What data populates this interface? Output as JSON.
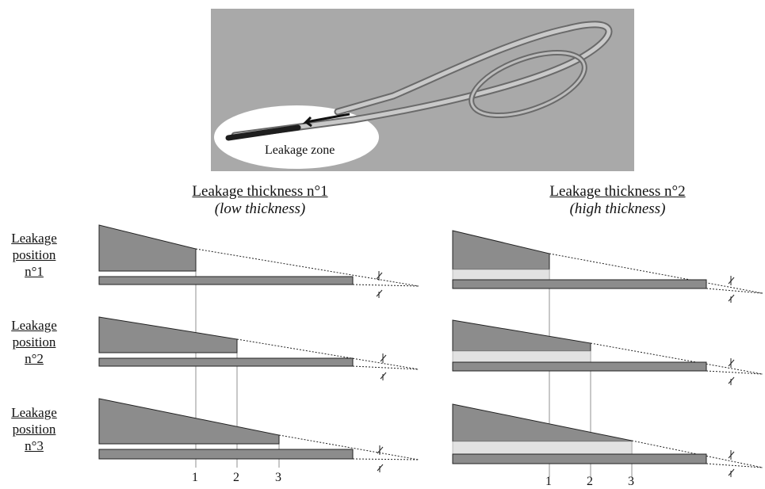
{
  "photo": {
    "zone_label": "Leakage zone"
  },
  "columns": [
    {
      "title": "Leakage thickness n°1",
      "subtitle": "(low thickness)"
    },
    {
      "title": "Leakage thickness n°2",
      "subtitle": "(high thickness)"
    }
  ],
  "rows": [
    {
      "lines": [
        "Leakage",
        "position",
        "n°1"
      ]
    },
    {
      "lines": [
        "Leakage",
        "position",
        "n°2"
      ]
    },
    {
      "lines": [
        "Leakage",
        "position",
        "n°3"
      ]
    }
  ],
  "position_labels": [
    "1",
    "2",
    "3"
  ],
  "colors": {
    "photo_bg": "#a9a9a9",
    "wedge": "#8c8c8c",
    "leak_gap": "#e2e2e2",
    "outline": "#222222"
  }
}
